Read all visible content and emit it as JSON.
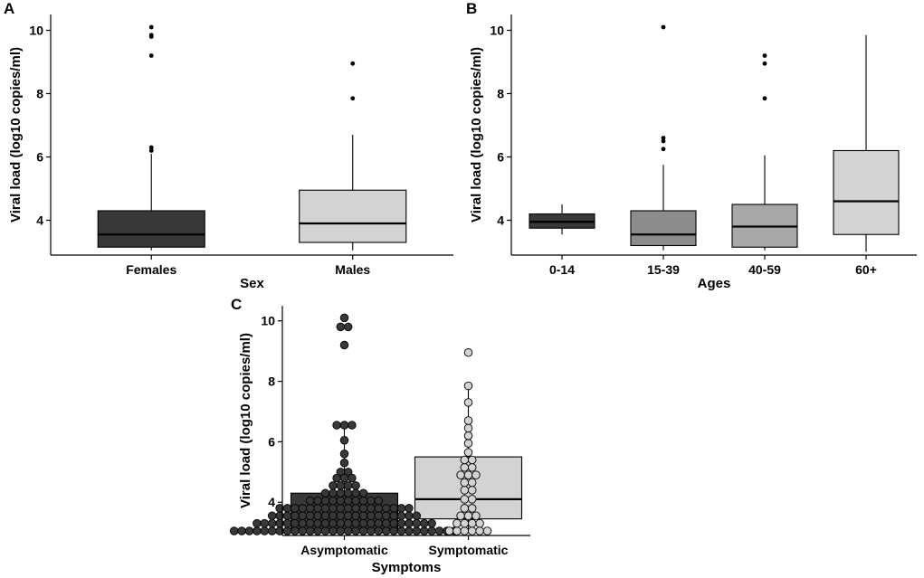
{
  "figure": {
    "colors": {
      "dark": "#383838",
      "mid_dark": "#8c8c8c",
      "mid": "#a8a8a8",
      "light": "#d3d3d3"
    }
  },
  "chart_data": [
    {
      "panel": "A",
      "type": "box",
      "xlabel": "Sex",
      "ylabel": "Viral load (log10 copies/ml)",
      "ylim": [
        2.9,
        10.5
      ],
      "yticks": [
        4,
        6,
        8,
        10
      ],
      "categories": [
        "Females",
        "Males"
      ],
      "boxes": [
        {
          "label": "Females",
          "min": 3.05,
          "q1": 3.15,
          "median": 3.55,
          "q3": 4.3,
          "max": 6.1,
          "outliers": [
            6.2,
            6.3,
            9.2,
            9.8,
            9.85,
            10.1
          ],
          "color": "#383838"
        },
        {
          "label": "Males",
          "min": 3.05,
          "q1": 3.3,
          "median": 3.9,
          "q3": 4.95,
          "max": 6.7,
          "outliers": [
            7.85,
            8.95
          ],
          "color": "#d3d3d3"
        }
      ]
    },
    {
      "panel": "B",
      "type": "box",
      "xlabel": "Ages",
      "ylabel": "Viral load (log10 copies/ml)",
      "ylim": [
        2.9,
        10.5
      ],
      "yticks": [
        4,
        6,
        8,
        10
      ],
      "categories": [
        "0-14",
        "15-39",
        "40-59",
        "60+"
      ],
      "boxes": [
        {
          "label": "0-14",
          "min": 3.55,
          "q1": 3.75,
          "median": 3.95,
          "q3": 4.2,
          "max": 4.5,
          "outliers": [],
          "color": "#383838"
        },
        {
          "label": "15-39",
          "min": 3.05,
          "q1": 3.2,
          "median": 3.55,
          "q3": 4.3,
          "max": 5.75,
          "outliers": [
            6.25,
            6.5,
            6.6,
            10.1
          ],
          "color": "#8c8c8c"
        },
        {
          "label": "40-59",
          "min": 3.05,
          "q1": 3.15,
          "median": 3.8,
          "q3": 4.5,
          "max": 6.05,
          "outliers": [
            7.85,
            8.95,
            9.2
          ],
          "color": "#a8a8a8"
        },
        {
          "label": "60+",
          "min": 3.0,
          "q1": 3.55,
          "median": 4.6,
          "q3": 6.2,
          "max": 9.85,
          "outliers": [],
          "color": "#d3d3d3"
        }
      ]
    },
    {
      "panel": "C",
      "type": "box",
      "xlabel": "Symptoms",
      "ylabel": "Viral load (log10 copies/ml)",
      "ylim": [
        2.9,
        10.5
      ],
      "yticks": [
        4,
        6,
        8,
        10
      ],
      "categories": [
        "Asymptomatic",
        "Symptomatic"
      ],
      "boxes": [
        {
          "label": "Asymptomatic",
          "min": 3.05,
          "q1": 3.05,
          "median": 3.55,
          "q3": 4.3,
          "max": 6.6,
          "outliers": [
            9.2,
            9.8,
            10.1
          ],
          "color": "#383838"
        },
        {
          "label": "Symptomatic",
          "min": 3.05,
          "q1": 3.45,
          "median": 4.1,
          "q3": 5.5,
          "max": 7.85,
          "outliers": [
            8.95
          ],
          "color": "#d3d3d3"
        }
      ],
      "points": [
        {
          "group": "Asymptomatic",
          "values": [
            3.05,
            3.05,
            3.05,
            3.05,
            3.05,
            3.05,
            3.05,
            3.05,
            3.05,
            3.05,
            3.05,
            3.05,
            3.05,
            3.05,
            3.05,
            3.05,
            3.05,
            3.05,
            3.05,
            3.05,
            3.05,
            3.05,
            3.05,
            3.05,
            3.05,
            3.05,
            3.05,
            3.05,
            3.05,
            3.05,
            3.3,
            3.3,
            3.3,
            3.3,
            3.3,
            3.3,
            3.3,
            3.3,
            3.3,
            3.3,
            3.3,
            3.3,
            3.3,
            3.3,
            3.3,
            3.3,
            3.3,
            3.3,
            3.3,
            3.3,
            3.3,
            3.3,
            3.3,
            3.3,
            3.55,
            3.55,
            3.55,
            3.55,
            3.55,
            3.55,
            3.55,
            3.55,
            3.55,
            3.55,
            3.55,
            3.55,
            3.55,
            3.55,
            3.55,
            3.55,
            3.55,
            3.55,
            3.55,
            3.55,
            3.8,
            3.8,
            3.8,
            3.8,
            3.8,
            3.8,
            3.8,
            3.8,
            3.8,
            3.8,
            3.8,
            3.8,
            3.8,
            3.8,
            3.8,
            3.8,
            3.8,
            3.8,
            4.05,
            4.05,
            4.05,
            4.05,
            4.05,
            4.05,
            4.05,
            4.05,
            4.05,
            4.05,
            4.3,
            4.3,
            4.3,
            4.3,
            4.3,
            4.3,
            4.55,
            4.55,
            4.55,
            4.55,
            4.8,
            4.8,
            4.8,
            5.0,
            5.0,
            5.3,
            5.6,
            6.05,
            6.55,
            6.55,
            6.55,
            9.2,
            9.8,
            9.8,
            10.1
          ]
        },
        {
          "group": "Symptomatic",
          "values": [
            3.05,
            3.05,
            3.05,
            3.05,
            3.05,
            3.05,
            3.3,
            3.3,
            3.3,
            3.3,
            3.55,
            3.55,
            3.55,
            3.8,
            3.8,
            4.1,
            4.1,
            4.4,
            4.4,
            4.65,
            4.65,
            4.9,
            4.9,
            4.9,
            5.15,
            5.15,
            5.4,
            5.4,
            5.65,
            5.95,
            6.2,
            6.45,
            6.7,
            7.3,
            7.85,
            8.95
          ]
        }
      ]
    }
  ]
}
